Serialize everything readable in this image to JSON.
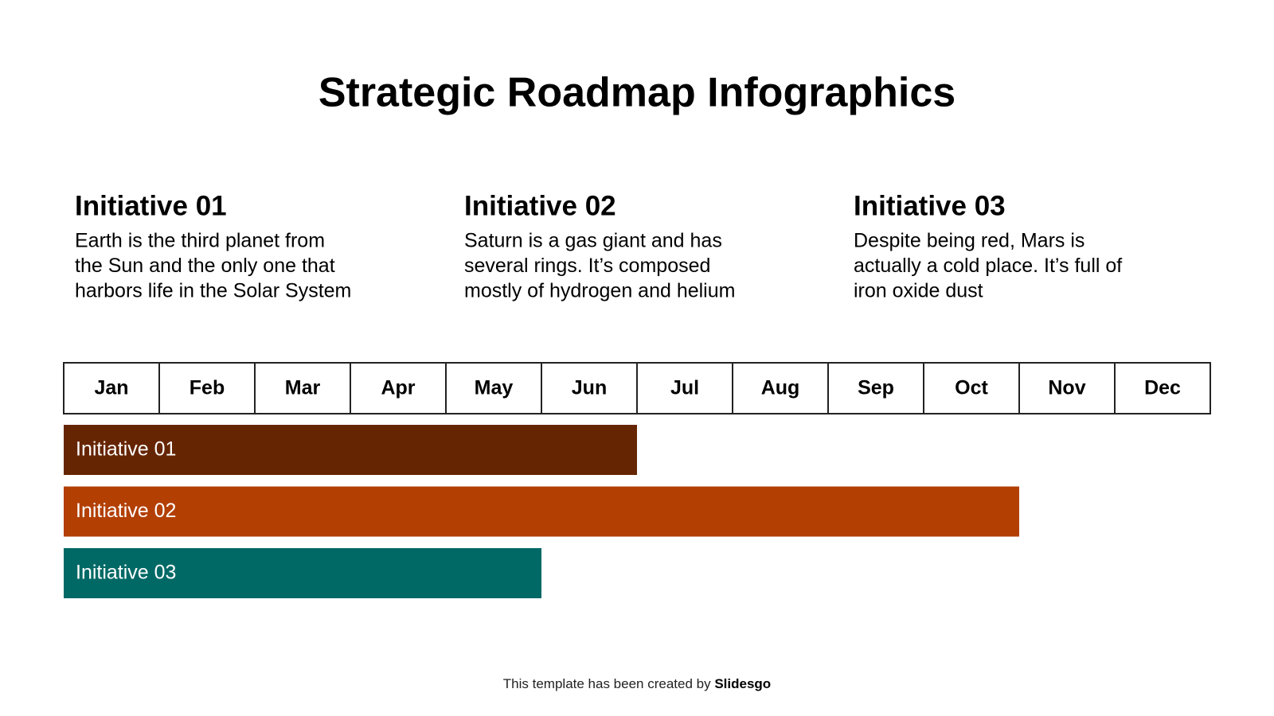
{
  "header": {
    "title": "Strategic Roadmap Infographics"
  },
  "initiatives": [
    {
      "title": "Initiative 01",
      "text": [
        "Earth is the third planet from",
        "the Sun and the only one that",
        "harbors life in the Solar System"
      ]
    },
    {
      "title": "Initiative 02",
      "text": [
        "Saturn is a gas giant and has",
        "several rings. It’s composed",
        "mostly of hydrogen and helium"
      ]
    },
    {
      "title": "Initiative 03",
      "text": [
        "Despite being red, Mars is",
        "actually a cold place. It’s full of",
        "iron oxide dust"
      ]
    }
  ],
  "timeline": {
    "months": [
      "Jan",
      "Feb",
      "Mar",
      "Apr",
      "May",
      "Jun",
      "Jul",
      "Aug",
      "Sep",
      "Oct",
      "Nov",
      "Dec"
    ],
    "bars": [
      {
        "label": "Initiative 01",
        "color": "#662502",
        "months": 6
      },
      {
        "label": "Initiative 02",
        "color": "#b33f03",
        "months": 10
      },
      {
        "label": "Initiative 03",
        "color": "#006966",
        "months": 5
      }
    ]
  },
  "footer": {
    "text": "This template has been created by",
    "brand": "Slidesgo"
  }
}
